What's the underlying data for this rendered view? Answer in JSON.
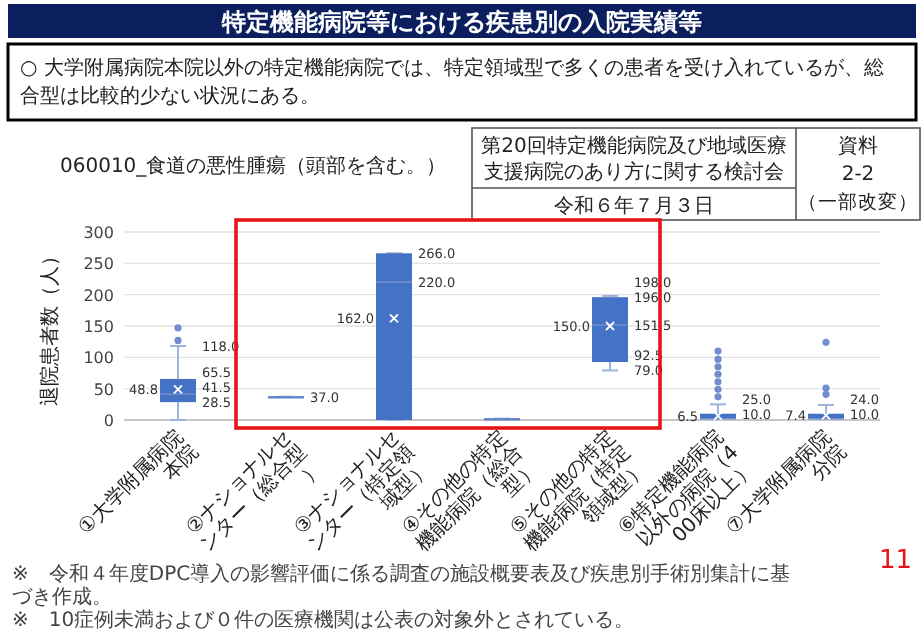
{
  "chart_data": {
    "type": "box",
    "title": "特定機能病院等における疾患別の入院実績等",
    "subtitle": "060010_食道の悪性腫瘍（頭部を含む。）",
    "ylabel": "退院患者数（人）",
    "categories": [
      "①大学附属病院本院",
      "②ナショナルセンター（総合型）",
      "③ナショナルセンター（特定領域型）",
      "④その他の特定機能病院（総合型）",
      "⑤その他の特定機能病院（特定領域型）",
      "⑥特定機能病院以外の病院（400床以上）",
      "⑦大学附属病院分院"
    ],
    "color": "#4472c4",
    "ylim": [
      0,
      300
    ],
    "yticks": [
      0,
      50,
      100,
      150,
      200,
      250,
      300
    ],
    "grid": "y",
    "boxes": [
      {
        "low": 0,
        "q1": 28.5,
        "median": 41.5,
        "q3": 65.5,
        "high": 118,
        "mean": 48.8,
        "outliers": [
          127,
          147
        ]
      },
      {
        "low": 37,
        "q1": 37,
        "median": 37,
        "q3": 37,
        "high": 37
      },
      {
        "low": 0,
        "q1": 0,
        "median": 220,
        "q3": 266,
        "high": 266,
        "mean": 162
      },
      {
        "low": 2,
        "q1": 2,
        "median": 2,
        "q3": 2,
        "high": 2
      },
      {
        "low": 79,
        "q1": 92.5,
        "median": 151.5,
        "q3": 196,
        "high": 198,
        "mean": 150
      },
      {
        "low": 2,
        "q1": 2,
        "median": 2,
        "q3": 10,
        "high": 25,
        "mean": 6.5,
        "outliers": [
          37,
          49,
          61,
          73,
          85,
          97,
          110
        ]
      },
      {
        "low": 2,
        "q1": 2,
        "median": 2,
        "q3": 10,
        "high": 24,
        "mean": 7.4,
        "outliers": [
          41,
          51,
          124
        ]
      }
    ],
    "annotations": [
      "○ 大学附属病院本院以外の特定機能病院では、特定領域型で多くの患者を受け入れているが、総合型は比較的少ない状況にある。",
      "第20回特定機能病院及び地域医療支援病院のあり方に関する検討会",
      "令和６年７月３日",
      "資料",
      "2-2",
      "（一部改変）",
      "※　令和４年度DPC導入の影響評価に係る調査の施設概要表及び疾患別手術別集計に基づき作成。",
      "※　10症例未満および０件の医療機関は公表の対象外とされている。",
      "11",
      "28.5",
      "41.5",
      "65.5",
      "118.0",
      "48.8",
      "37.0",
      "220.0",
      "266.0",
      "162.0",
      "79.0",
      "92.5",
      "151.5",
      "196.0",
      "198.0",
      "150.0",
      "10.0",
      "25.0",
      "6.5",
      "10.0",
      "24.0",
      "7.4"
    ]
  }
}
